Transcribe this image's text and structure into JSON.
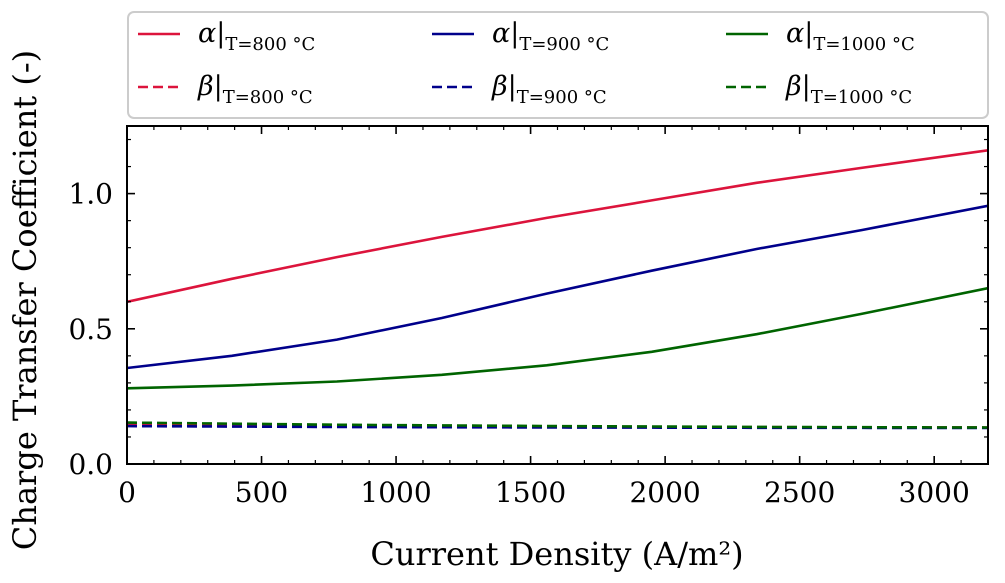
{
  "chart_data": {
    "type": "line",
    "xlabel": "Current Density (A/m²)",
    "ylabel": "Charge Transfer Coefficient (-)",
    "xlim": [
      0,
      3200
    ],
    "ylim": [
      0,
      1.25
    ],
    "xticks": [
      0,
      500,
      1000,
      1500,
      2000,
      2500,
      3000
    ],
    "xtick_labels": [
      "0",
      "500",
      "1000",
      "1500",
      "2000",
      "2500",
      "3000"
    ],
    "yticks": [
      0.0,
      0.5,
      1.0
    ],
    "ytick_labels": [
      "0.0",
      "0.5",
      "1.0"
    ],
    "legend_position": "top (above plot)",
    "series": [
      {
        "name": "α|T=800 °C",
        "symbol": "α",
        "subscript": "T=800 °C",
        "color": "#dc143c",
        "dash": "solid",
        "x": [
          0,
          390,
          780,
          1170,
          1560,
          1950,
          2340,
          2730,
          3200
        ],
        "y": [
          0.6,
          0.685,
          0.765,
          0.84,
          0.91,
          0.975,
          1.04,
          1.095,
          1.16
        ]
      },
      {
        "name": "α|T=900 °C",
        "symbol": "α",
        "subscript": "T=900 °C",
        "color": "#00008b",
        "dash": "solid",
        "x": [
          0,
          390,
          780,
          1170,
          1560,
          1950,
          2340,
          2730,
          3200
        ],
        "y": [
          0.355,
          0.4,
          0.46,
          0.54,
          0.63,
          0.715,
          0.795,
          0.865,
          0.955
        ]
      },
      {
        "name": "α|T=1000 °C",
        "symbol": "α",
        "subscript": "T=1000 °C",
        "color": "#006400",
        "dash": "solid",
        "x": [
          0,
          390,
          780,
          1170,
          1560,
          1950,
          2340,
          2730,
          3200
        ],
        "y": [
          0.28,
          0.29,
          0.305,
          0.33,
          0.365,
          0.415,
          0.48,
          0.555,
          0.65
        ]
      },
      {
        "name": "β|T=800 °C",
        "symbol": "β",
        "subscript": "T=800 °C",
        "color": "#dc143c",
        "dash": "dashed",
        "x": [
          0,
          800,
          1600,
          2400,
          3200
        ],
        "y": [
          0.145,
          0.14,
          0.138,
          0.136,
          0.135
        ]
      },
      {
        "name": "β|T=900 °C",
        "symbol": "β",
        "subscript": "T=900 °C",
        "color": "#00008b",
        "dash": "dashed",
        "x": [
          0,
          800,
          1600,
          2400,
          3200
        ],
        "y": [
          0.14,
          0.137,
          0.135,
          0.134,
          0.133
        ]
      },
      {
        "name": "β|T=1000 °C",
        "symbol": "β",
        "subscript": "T=1000 °C",
        "color": "#006400",
        "dash": "dashed",
        "x": [
          0,
          800,
          1600,
          2400,
          3200
        ],
        "y": [
          0.153,
          0.145,
          0.14,
          0.137,
          0.135
        ]
      }
    ]
  }
}
